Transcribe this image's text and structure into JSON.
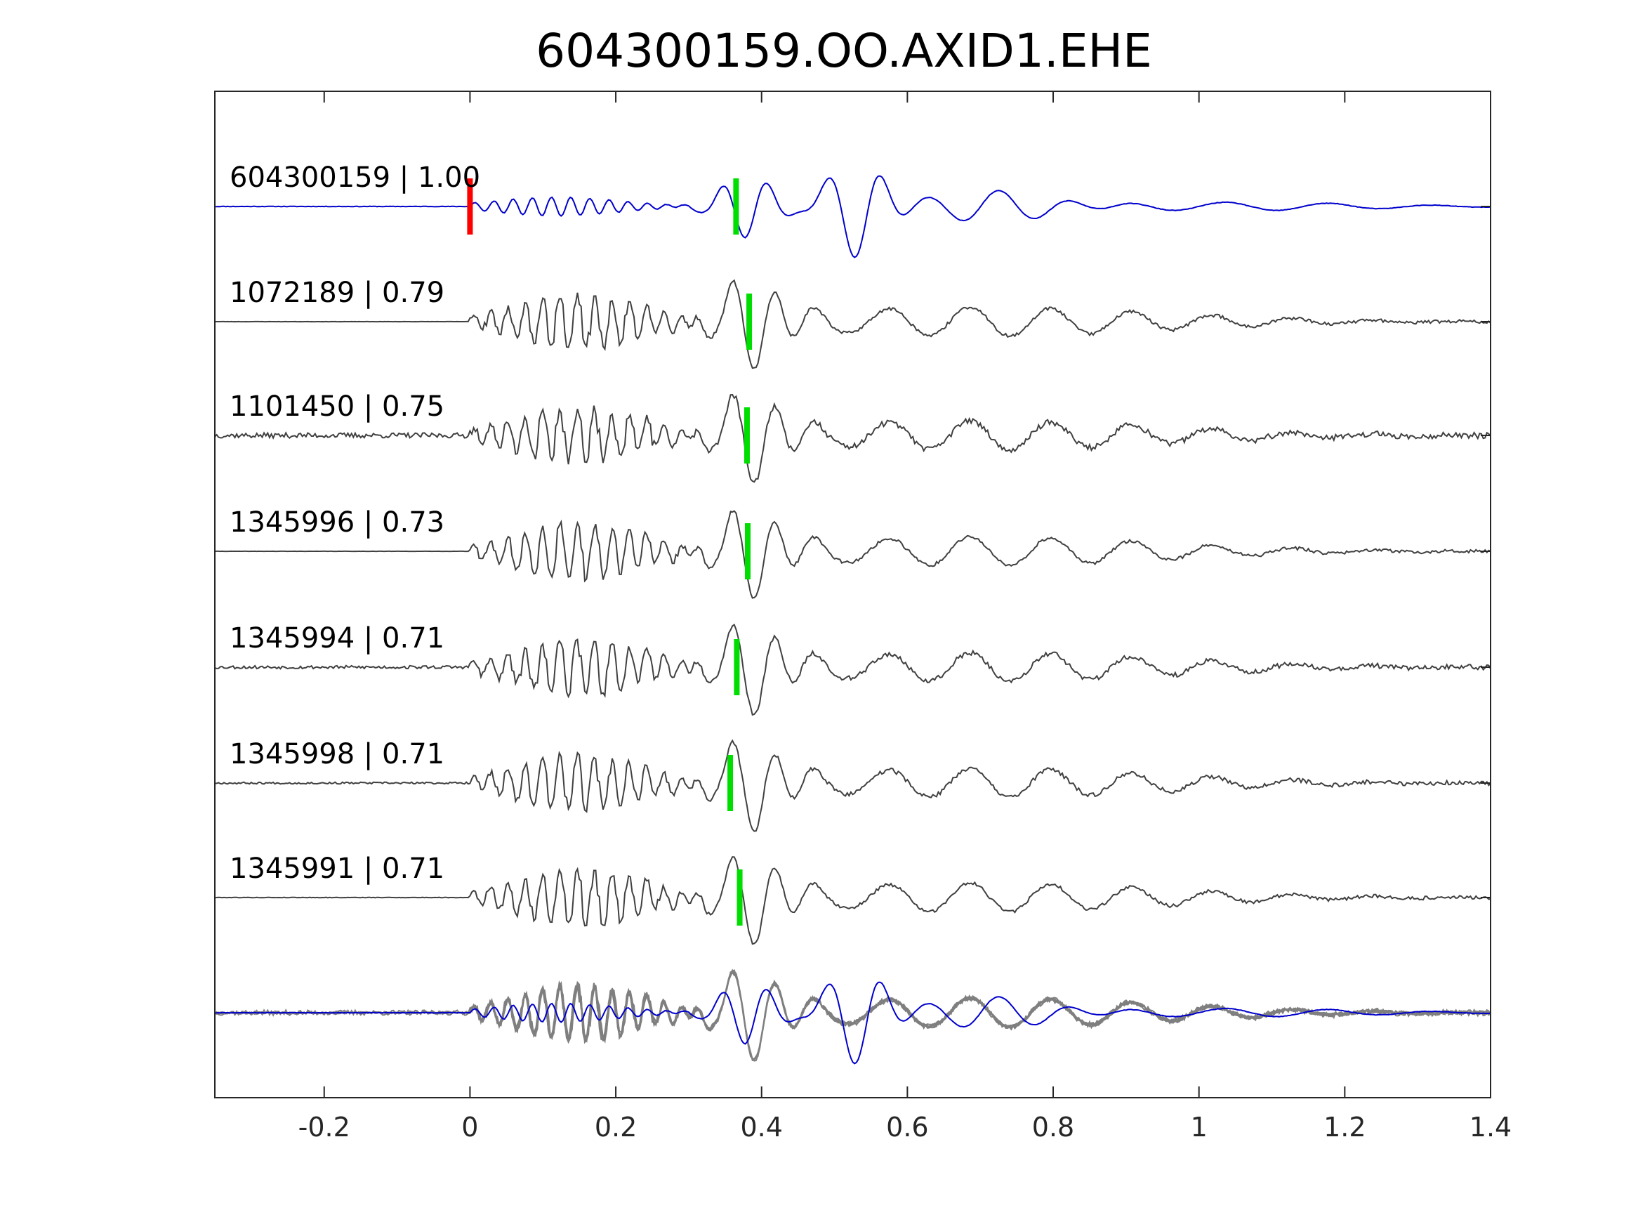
{
  "chart_data": {
    "type": "line",
    "title": "604300159.OO.AXID1.EHE",
    "xlabel": "",
    "ylabel": "",
    "xlim": [
      -0.35,
      1.4
    ],
    "xticks": [
      -0.2,
      0,
      0.2,
      0.4,
      0.6,
      0.8,
      1,
      1.2,
      1.4
    ],
    "xtick_labels": [
      "-0.2",
      "0",
      "0.2",
      "0.4",
      "0.6",
      "0.8",
      "1",
      "1.2",
      "1.4"
    ],
    "grid": false,
    "colors": {
      "reference": "#0000cc",
      "match": "#404040",
      "overlay": "#7f7f7f",
      "origin_marker": "#ff0000",
      "pick_marker": "#00dd00"
    },
    "traces": [
      {
        "id": "604300159",
        "correlation": "1.00",
        "label": "604300159 | 1.00",
        "reference": true,
        "pick": 0.365,
        "origin_marker": 0.0,
        "noise_before_onset": 0.01,
        "seed": 11
      },
      {
        "id": "1072189",
        "correlation": "0.79",
        "label": "1072189 | 0.79",
        "reference": false,
        "pick": 0.383,
        "noise_before_onset": 0.02,
        "seed": 23
      },
      {
        "id": "1101450",
        "correlation": "0.75",
        "label": "1101450 | 0.75",
        "reference": false,
        "pick": 0.38,
        "noise_before_onset": 0.55,
        "seed": 37
      },
      {
        "id": "1345996",
        "correlation": "0.73",
        "label": "1345996 | 0.73",
        "reference": false,
        "pick": 0.381,
        "noise_before_onset": 0.02,
        "seed": 41
      },
      {
        "id": "1345994",
        "correlation": "0.71",
        "label": "1345994 | 0.71",
        "reference": false,
        "pick": 0.366,
        "noise_before_onset": 0.35,
        "seed": 53
      },
      {
        "id": "1345998",
        "correlation": "0.71",
        "label": "1345998 | 0.71",
        "reference": false,
        "pick": 0.357,
        "noise_before_onset": 0.2,
        "seed": 67
      },
      {
        "id": "1345991",
        "correlation": "0.71",
        "label": "1345991 | 0.71",
        "reference": false,
        "pick": 0.37,
        "noise_before_onset": 0.05,
        "seed": 79
      }
    ],
    "stack": {
      "description_hidden": true,
      "overlay_of_all_traces": true
    }
  }
}
